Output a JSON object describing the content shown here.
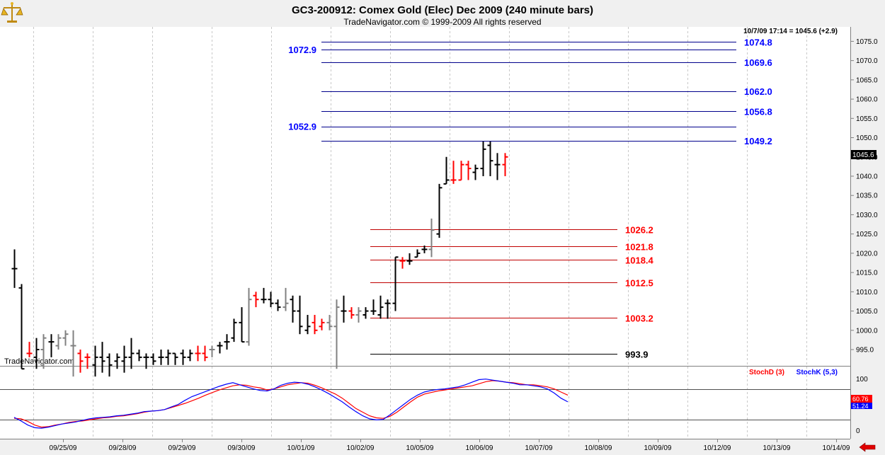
{
  "header": {
    "title": "GC3-200912:  Comex Gold (Elec) Dec 2009  (240 minute bars)",
    "subtitle": "TradeNavigator.com © 1999-2009 All rights reserved",
    "readout": "10/7/09 17:14 = 1045.6 (+2.9)",
    "watermark": "TradeNavigator.com"
  },
  "colors": {
    "up_bar": "#000000",
    "down_bar": "#ff0000",
    "neutral_bar": "#808080",
    "resistance_lines": "#00008b",
    "resistance_labels": "#0000ff",
    "support_lines": "#c00000",
    "support_labels": "#ff0000",
    "stochd": "#ff0000",
    "stochk": "#0000ff"
  },
  "chart_data": [
    {
      "type": "ohlc",
      "ylim": [
        990,
        1080
      ],
      "yticks": [
        "995.0",
        "1000.0",
        "1005.0",
        "1010.0",
        "1015.0",
        "1020.0",
        "1025.0",
        "1030.0",
        "1035.0",
        "1040.0",
        "1045.0",
        "1050.0",
        "1055.0",
        "1060.0",
        "1065.0",
        "1070.0",
        "1075.0"
      ],
      "last_price_label": "1045.6",
      "x_labels": [
        "09/25/09",
        "09/28/09",
        "09/29/09",
        "09/30/09",
        "10/01/09",
        "10/02/09",
        "10/05/09",
        "10/06/09",
        "10/07/09",
        "10/08/09",
        "10/09/09",
        "10/12/09",
        "10/13/09",
        "10/14/09"
      ],
      "bars": [
        [
          1016,
          1021,
          1011,
          1016,
          "k"
        ],
        [
          1011,
          1012,
          990,
          990,
          "k"
        ],
        [
          994,
          997,
          993,
          994,
          "r"
        ],
        [
          993,
          998,
          990,
          995,
          "k"
        ],
        [
          995,
          999,
          990,
          998,
          "g"
        ],
        [
          997,
          999,
          993,
          997,
          "k"
        ],
        [
          996,
          999,
          995,
          998,
          "g"
        ],
        [
          998,
          1000,
          996,
          999,
          "g"
        ],
        [
          996,
          1000,
          988,
          996,
          "g"
        ],
        [
          994,
          995,
          989,
          992,
          "r"
        ],
        [
          993,
          994,
          990,
          993,
          "r"
        ],
        [
          991,
          996,
          988,
          993,
          "k"
        ],
        [
          993,
          997,
          989,
          992,
          "k"
        ],
        [
          993,
          994,
          988,
          991,
          "k"
        ],
        [
          992,
          994,
          990,
          993,
          "k"
        ],
        [
          992,
          996,
          989,
          993,
          "k"
        ],
        [
          993,
          998,
          990,
          994,
          "k"
        ],
        [
          994,
          995,
          992,
          993,
          "k"
        ],
        [
          993,
          994,
          990,
          993,
          "k"
        ],
        [
          993,
          994,
          991,
          992,
          "k"
        ],
        [
          993,
          995,
          991,
          993,
          "k"
        ],
        [
          993,
          995,
          991,
          994,
          "k"
        ],
        [
          994,
          994,
          991,
          993,
          "k"
        ],
        [
          994,
          995,
          991,
          993,
          "k"
        ],
        [
          993,
          995,
          992,
          994,
          "k"
        ],
        [
          994,
          996,
          992,
          994,
          "r"
        ],
        [
          994,
          996,
          992,
          993,
          "r"
        ],
        [
          995,
          996,
          993,
          995,
          "g"
        ],
        [
          996,
          997,
          994,
          996,
          "k"
        ],
        [
          997,
          999,
          995,
          997,
          "k"
        ],
        [
          998,
          1003,
          997,
          1002,
          "k"
        ],
        [
          1002,
          1006,
          997,
          997,
          "k"
        ],
        [
          997,
          1011,
          996,
          1008,
          "g"
        ],
        [
          1009,
          1010,
          1006,
          1008,
          "r"
        ],
        [
          1008,
          1011,
          1007,
          1008,
          "k"
        ],
        [
          1008,
          1010,
          1006,
          1007,
          "k"
        ],
        [
          1007,
          1008,
          1005,
          1006,
          "k"
        ],
        [
          1006,
          1011,
          1005,
          1007,
          "g"
        ],
        [
          1008,
          1009,
          1002,
          1005,
          "k"
        ],
        [
          1005,
          1009,
          999,
          1001,
          "k"
        ],
        [
          1000,
          1004,
          999,
          1001,
          "k"
        ],
        [
          1002,
          1004,
          999,
          1000,
          "r"
        ],
        [
          1001,
          1003,
          1000,
          1002,
          "r"
        ],
        [
          1002,
          1004,
          1000,
          1001,
          "g"
        ],
        [
          1001,
          1008,
          990,
          1006,
          "g"
        ],
        [
          1005,
          1009,
          1002,
          1005,
          "k"
        ],
        [
          1005,
          1006,
          1003,
          1004,
          "r"
        ],
        [
          1004,
          1006,
          1002,
          1005,
          "g"
        ],
        [
          1004,
          1006,
          1003,
          1005,
          "k"
        ],
        [
          1005,
          1008,
          1004,
          1005,
          "k"
        ],
        [
          1004,
          1009,
          1003,
          1006,
          "k"
        ],
        [
          1007,
          1008,
          1003,
          1007,
          "k"
        ],
        [
          1007,
          1019,
          1005,
          1019,
          "k"
        ],
        [
          1018,
          1019,
          1016,
          1018,
          "r"
        ],
        [
          1018,
          1020,
          1017,
          1018,
          "k"
        ],
        [
          1019,
          1021,
          1019,
          1020,
          "k"
        ],
        [
          1021,
          1022,
          1020,
          1021,
          "k"
        ],
        [
          1021,
          1029,
          1019,
          1026,
          "g"
        ],
        [
          1025,
          1038,
          1024,
          1037,
          "k"
        ],
        [
          1038,
          1045,
          1038,
          1039,
          "k"
        ],
        [
          1039,
          1044,
          1038,
          1039,
          "r"
        ],
        [
          1039,
          1044,
          1039,
          1043,
          "r"
        ],
        [
          1043,
          1044,
          1039,
          1042,
          "r"
        ],
        [
          1041,
          1043,
          1039,
          1042,
          "k"
        ],
        [
          1042,
          1049,
          1040,
          1047,
          "k"
        ],
        [
          1048,
          1049,
          1040,
          1044,
          "k"
        ],
        [
          1043,
          1046,
          1039,
          1043,
          "k"
        ],
        [
          1043,
          1046,
          1040,
          1045,
          "r"
        ]
      ],
      "resistance_lines": [
        "1074.8",
        "1072.9",
        "1069.6",
        "1062.0",
        "1056.8",
        "1052.9",
        "1049.2"
      ],
      "resistance_line_values": [
        1074.8,
        1072.9,
        1069.6,
        1062.0,
        1056.8,
        1052.9,
        1049.2
      ],
      "right_labels_blue": [
        "1074.8",
        "1069.6",
        "1062.0",
        "1056.8",
        "1049.2"
      ],
      "left_labels_blue": [
        "1072.9",
        "1052.9"
      ],
      "support_lines": [
        "1026.2",
        "1021.8",
        "1018.4",
        "1012.5",
        "1003.2"
      ],
      "support_line_values": [
        1026.2,
        1021.8,
        1018.4,
        1012.5,
        1003.2
      ],
      "base_line": "993.9",
      "base_line_value": 993.9
    },
    {
      "type": "line",
      "ylim": [
        -5,
        110
      ],
      "yticks": [
        "100",
        "50",
        "0"
      ],
      "levels": [
        80,
        20
      ],
      "series": [
        {
          "name": "StochD (3)",
          "color": "#ff0000",
          "values": [
            23,
            22,
            17,
            10,
            6,
            7,
            10,
            12,
            15,
            17,
            18,
            20,
            22,
            24,
            25,
            27,
            28,
            30,
            32,
            35,
            37,
            38,
            40,
            44,
            48,
            52,
            57,
            62,
            68,
            73,
            78,
            82,
            86,
            88,
            87,
            84,
            82,
            78,
            80,
            84,
            88,
            90,
            92,
            91,
            87,
            82,
            76,
            70,
            62,
            52,
            42,
            35,
            28,
            24,
            23,
            27,
            35,
            45,
            55,
            64,
            70,
            73,
            76,
            78,
            80,
            82,
            84,
            86,
            90,
            94,
            96,
            95,
            93,
            92,
            90,
            88,
            88,
            86,
            84,
            80,
            74,
            68
          ]
        },
        {
          "name": "StochK (5,3)",
          "color": "#0000ff",
          "values": [
            25,
            18,
            10,
            5,
            4,
            6,
            9,
            12,
            14,
            16,
            19,
            22,
            24,
            25,
            26,
            28,
            29,
            31,
            33,
            36,
            37,
            38,
            40,
            45,
            50,
            58,
            65,
            70,
            75,
            80,
            85,
            89,
            92,
            88,
            84,
            80,
            77,
            76,
            80,
            87,
            91,
            93,
            92,
            89,
            84,
            78,
            71,
            63,
            55,
            45,
            36,
            28,
            22,
            20,
            21,
            30,
            40,
            50,
            60,
            68,
            74,
            77,
            79,
            80,
            82,
            84,
            88,
            93,
            98,
            99,
            97,
            95,
            93,
            91,
            88,
            88,
            86,
            84,
            80,
            72,
            62,
            55
          ]
        }
      ],
      "stochd_value": "60.76",
      "stochk_value": "51.24"
    }
  ]
}
